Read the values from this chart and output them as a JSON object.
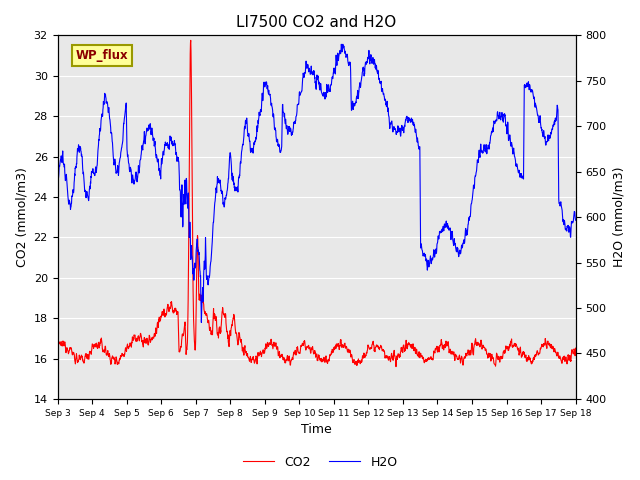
{
  "title": "LI7500 CO2 and H2O",
  "xlabel": "Time",
  "ylabel_left": "CO2 (mmol/m3)",
  "ylabel_right": "H2O (mmol/m3)",
  "ylim_left": [
    14,
    32
  ],
  "ylim_right": [
    400,
    800
  ],
  "yticks_left": [
    14,
    16,
    18,
    20,
    22,
    24,
    26,
    28,
    30,
    32
  ],
  "yticks_right": [
    400,
    450,
    500,
    550,
    600,
    650,
    700,
    750,
    800
  ],
  "xtick_labels": [
    "Sep 3",
    "Sep 4",
    "Sep 5",
    "Sep 6",
    "Sep 7",
    "Sep 8",
    "Sep 9",
    "Sep 10",
    "Sep 11",
    "Sep 12",
    "Sep 13",
    "Sep 14",
    "Sep 15",
    "Sep 16",
    "Sep 17",
    "Sep 18"
  ],
  "annotation_text": "WP_flux",
  "background_color": "#ffffff",
  "plot_bg_color": "#e8e8e8",
  "grid_color": "#ffffff",
  "co2_color": "#ff0000",
  "h2o_color": "#0000ff",
  "legend_co2": "CO2",
  "legend_h2o": "H2O",
  "title_fontsize": 11,
  "axis_fontsize": 9,
  "tick_fontsize": 8
}
